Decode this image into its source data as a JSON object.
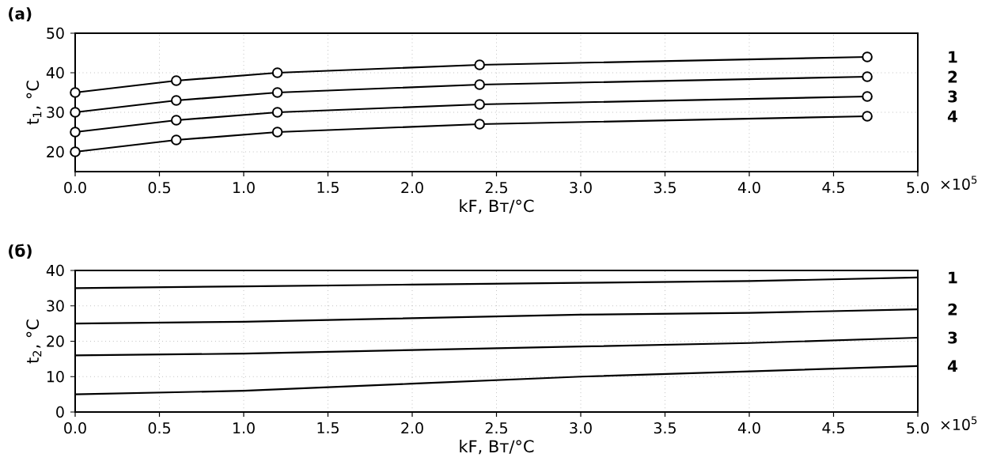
{
  "chart_data": [
    {
      "type": "line",
      "title": "(a)",
      "xlabel": "kF, Вт/°C",
      "ylabel": "t$_{1}$, °C",
      "annotations": [
        "×10$^{5}$"
      ],
      "x": [
        0,
        0.6,
        1.2,
        2.4,
        4.7
      ],
      "series": [
        {
          "name": "1",
          "color": "#000000",
          "values": [
            35,
            38,
            40,
            42,
            44
          ]
        },
        {
          "name": "2",
          "color": "#000000",
          "values": [
            30,
            33,
            35,
            37,
            39
          ]
        },
        {
          "name": "3",
          "color": "#000000",
          "values": [
            25,
            28,
            30,
            32,
            34
          ]
        },
        {
          "name": "4",
          "color": "#000000",
          "values": [
            20,
            23,
            25,
            27,
            29
          ]
        }
      ],
      "xlim": [
        0,
        5
      ],
      "ylim": [
        15,
        50
      ],
      "xticks": [
        {
          "value": 0,
          "label": "0.0"
        },
        {
          "value": 0.5,
          "label": "0.5"
        },
        {
          "value": 1,
          "label": "1.0"
        },
        {
          "value": 1.5,
          "label": "1.5"
        },
        {
          "value": 2,
          "label": "2.0"
        },
        {
          "value": 2.5,
          "label": "2.5"
        },
        {
          "value": 3,
          "label": "3.0"
        },
        {
          "value": 3.5,
          "label": "3.5"
        },
        {
          "value": 4,
          "label": "4.0"
        },
        {
          "value": 4.5,
          "label": "4.5"
        },
        {
          "value": 5,
          "label": "5.0"
        }
      ],
      "yticks": [
        20,
        30,
        40,
        50
      ],
      "grid": true,
      "marker": "circle",
      "line_style": "solid"
    },
    {
      "type": "line",
      "title": "(б)",
      "xlabel": "kF, Вт/°C",
      "ylabel": "t$_{2}$, °C",
      "annotations": [
        "×10$^{5}$"
      ],
      "x": [
        0,
        1,
        2,
        3,
        4,
        5
      ],
      "series": [
        {
          "name": "1",
          "color": "#000000",
          "values": [
            35,
            35.5,
            36,
            36.5,
            37,
            38
          ]
        },
        {
          "name": "2",
          "color": "#000000",
          "values": [
            25,
            25.5,
            26.5,
            27.5,
            28,
            29
          ]
        },
        {
          "name": "3",
          "color": "#000000",
          "values": [
            16,
            16.5,
            17.5,
            18.5,
            19.5,
            21
          ]
        },
        {
          "name": "4",
          "color": "#000000",
          "values": [
            5,
            6,
            8,
            10,
            11.5,
            13
          ]
        }
      ],
      "xlim": [
        0,
        5
      ],
      "ylim": [
        0,
        40
      ],
      "xticks": [
        {
          "value": 0,
          "label": "0.0"
        },
        {
          "value": 0.5,
          "label": "0.5"
        },
        {
          "value": 1,
          "label": "1.0"
        },
        {
          "value": 1.5,
          "label": "1.5"
        },
        {
          "value": 2,
          "label": "2.0"
        },
        {
          "value": 2.5,
          "label": "2.5"
        },
        {
          "value": 3,
          "label": "3.0"
        },
        {
          "value": 3.5,
          "label": "3.5"
        },
        {
          "value": 4,
          "label": "4.0"
        },
        {
          "value": 4.5,
          "label": "4.5"
        },
        {
          "value": 5,
          "label": "5.0"
        }
      ],
      "yticks": [
        0,
        10,
        20,
        30,
        40
      ],
      "grid": true,
      "marker": "none",
      "line_style": "solid"
    }
  ]
}
